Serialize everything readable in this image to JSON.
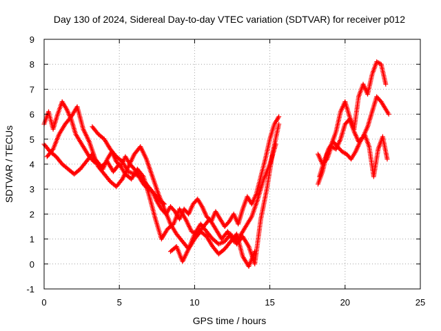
{
  "chart_data": {
    "type": "scatter",
    "title": "Day 130 of 2024, Sidereal Day-to-day VTEC variation (SDTVAR) for receiver p012",
    "xlabel": "GPS time / hours",
    "ylabel": "SDTVAR / TECUs",
    "xlim": [
      0,
      25
    ],
    "ylim": [
      -1,
      9
    ],
    "x_ticks": [
      "0",
      "5",
      "10",
      "15",
      "20",
      "25"
    ],
    "y_ticks": [
      "-1",
      "0",
      "1",
      "2",
      "3",
      "4",
      "5",
      "6",
      "7",
      "8",
      "9"
    ],
    "grid": true,
    "marker": "+",
    "color": "#ff0000",
    "series": [
      {
        "name": "trace-a",
        "x": [
          0.0,
          0.3,
          0.6,
          0.9,
          1.2,
          1.5,
          1.8,
          2.1,
          2.4,
          2.7,
          3.0,
          3.3,
          3.6,
          3.9,
          4.2,
          4.5,
          4.8,
          5.1,
          5.4,
          5.7,
          6.0,
          6.3,
          6.6,
          6.9,
          7.2,
          7.5,
          7.8,
          8.1,
          8.4,
          8.7,
          9.0,
          9.3,
          9.6,
          9.9,
          10.2,
          10.5,
          10.8,
          11.1,
          11.4,
          11.7,
          12.0,
          12.3,
          12.6,
          12.9,
          13.2,
          13.5,
          13.8,
          14.1,
          14.4,
          14.7,
          15.0,
          15.3,
          15.6
        ],
        "y": [
          5.6,
          6.1,
          5.4,
          6.0,
          6.5,
          6.2,
          5.8,
          5.2,
          4.9,
          4.6,
          4.3,
          4.1,
          4.0,
          3.8,
          4.2,
          4.5,
          4.1,
          3.9,
          4.3,
          4.0,
          3.8,
          3.5,
          3.2,
          3.0,
          2.9,
          2.5,
          2.2,
          2.0,
          2.3,
          2.1,
          1.8,
          2.2,
          2.0,
          2.4,
          2.6,
          2.3,
          1.9,
          1.7,
          2.1,
          1.8,
          1.5,
          1.7,
          2.0,
          1.6,
          2.2,
          2.7,
          2.4,
          2.8,
          3.5,
          4.2,
          5.0,
          5.6,
          5.9
        ]
      },
      {
        "name": "trace-b",
        "x": [
          0.0,
          0.4,
          0.8,
          1.2,
          1.6,
          2.0,
          2.4,
          2.8,
          3.2,
          3.6,
          4.0,
          4.4,
          4.8,
          5.2,
          5.6,
          6.0,
          6.4,
          6.8,
          7.2,
          7.6,
          8.0,
          8.4,
          8.8,
          9.2,
          9.6,
          10.0,
          10.4,
          10.8,
          11.2,
          11.6,
          12.0,
          12.4,
          12.8,
          13.2,
          13.6,
          14.0,
          14.4,
          14.8,
          15.2,
          15.6
        ],
        "y": [
          4.8,
          4.5,
          4.3,
          4.0,
          3.8,
          3.6,
          3.8,
          4.1,
          4.4,
          3.9,
          3.6,
          3.3,
          3.1,
          3.4,
          3.9,
          4.4,
          4.7,
          4.2,
          3.5,
          2.8,
          2.2,
          1.6,
          1.2,
          0.9,
          0.6,
          1.2,
          1.6,
          1.3,
          1.0,
          0.8,
          0.9,
          1.2,
          0.8,
          1.1,
          0.7,
          0.0,
          1.8,
          3.0,
          4.5,
          5.6
        ]
      },
      {
        "name": "trace-c",
        "x": [
          0.2,
          0.6,
          1.0,
          1.4,
          1.8,
          2.2,
          2.6,
          3.0,
          3.4,
          3.8,
          4.2,
          4.6,
          5.0,
          5.4,
          5.8,
          6.2,
          6.6,
          7.0,
          7.4,
          7.8,
          8.2,
          8.6,
          9.0,
          9.4,
          9.8,
          10.2,
          10.6,
          11.0,
          11.4,
          11.8,
          12.2,
          12.6,
          13.0,
          13.4,
          13.8,
          14.2,
          14.6,
          15.0,
          15.4
        ],
        "y": [
          4.3,
          4.6,
          5.2,
          5.6,
          5.9,
          6.3,
          5.4,
          4.9,
          4.2,
          3.9,
          4.1,
          3.7,
          4.0,
          3.6,
          3.4,
          3.8,
          3.5,
          2.7,
          1.8,
          1.0,
          1.4,
          1.6,
          2.2,
          1.8,
          1.3,
          1.2,
          1.5,
          1.8,
          1.4,
          1.0,
          1.3,
          0.9,
          1.1,
          1.5,
          1.9,
          2.6,
          3.4,
          4.0,
          4.8
        ]
      },
      {
        "name": "trace-d",
        "x": [
          3.2,
          3.6,
          4.0,
          4.4,
          4.8,
          5.2,
          5.6,
          6.0,
          6.4,
          6.8,
          7.2,
          7.6,
          8.0
        ],
        "y": [
          5.5,
          5.2,
          5.0,
          4.6,
          4.3,
          4.1,
          3.7,
          3.6,
          3.5,
          3.2,
          2.9,
          2.6,
          2.4
        ]
      },
      {
        "name": "trace-e",
        "x": [
          8.4,
          8.8,
          9.2,
          9.6,
          10.0,
          10.4,
          10.8,
          11.2,
          11.6,
          12.0,
          12.4,
          12.8,
          13.2,
          13.6,
          14.0
        ],
        "y": [
          0.5,
          0.7,
          0.1,
          0.6,
          1.0,
          1.3,
          1.1,
          0.7,
          0.4,
          0.6,
          0.9,
          1.2,
          0.3,
          -0.1,
          0.5
        ]
      },
      {
        "name": "trace-f",
        "x": [
          18.2,
          18.5,
          18.8,
          19.1,
          19.4,
          19.7,
          20.0,
          20.3,
          20.6,
          20.9,
          21.2,
          21.5,
          21.8,
          22.1,
          22.4,
          22.7
        ],
        "y": [
          3.2,
          3.7,
          4.4,
          4.8,
          5.3,
          6.1,
          6.5,
          5.9,
          5.4,
          6.7,
          7.2,
          6.8,
          7.6,
          8.1,
          8.0,
          7.2
        ]
      },
      {
        "name": "trace-g",
        "x": [
          18.2,
          18.5,
          18.8,
          19.1,
          19.4,
          19.7,
          20.0,
          20.3,
          20.6,
          20.9,
          21.2,
          21.5,
          21.8,
          22.1,
          22.4,
          22.7,
          22.9
        ],
        "y": [
          4.4,
          4.0,
          4.2,
          4.7,
          4.6,
          5.0,
          5.6,
          5.8,
          5.3,
          4.9,
          5.1,
          5.5,
          6.1,
          6.7,
          6.5,
          6.2,
          6.0
        ]
      },
      {
        "name": "trace-h",
        "x": [
          18.3,
          18.6,
          18.9,
          19.2,
          19.5,
          19.8,
          20.1,
          20.4,
          20.7,
          21.0,
          21.3,
          21.6,
          21.9,
          22.2,
          22.5,
          22.8
        ],
        "y": [
          3.5,
          4.1,
          4.6,
          4.9,
          4.7,
          4.5,
          4.4,
          4.2,
          4.5,
          4.9,
          5.2,
          4.7,
          3.5,
          4.6,
          5.1,
          4.2
        ]
      }
    ]
  }
}
